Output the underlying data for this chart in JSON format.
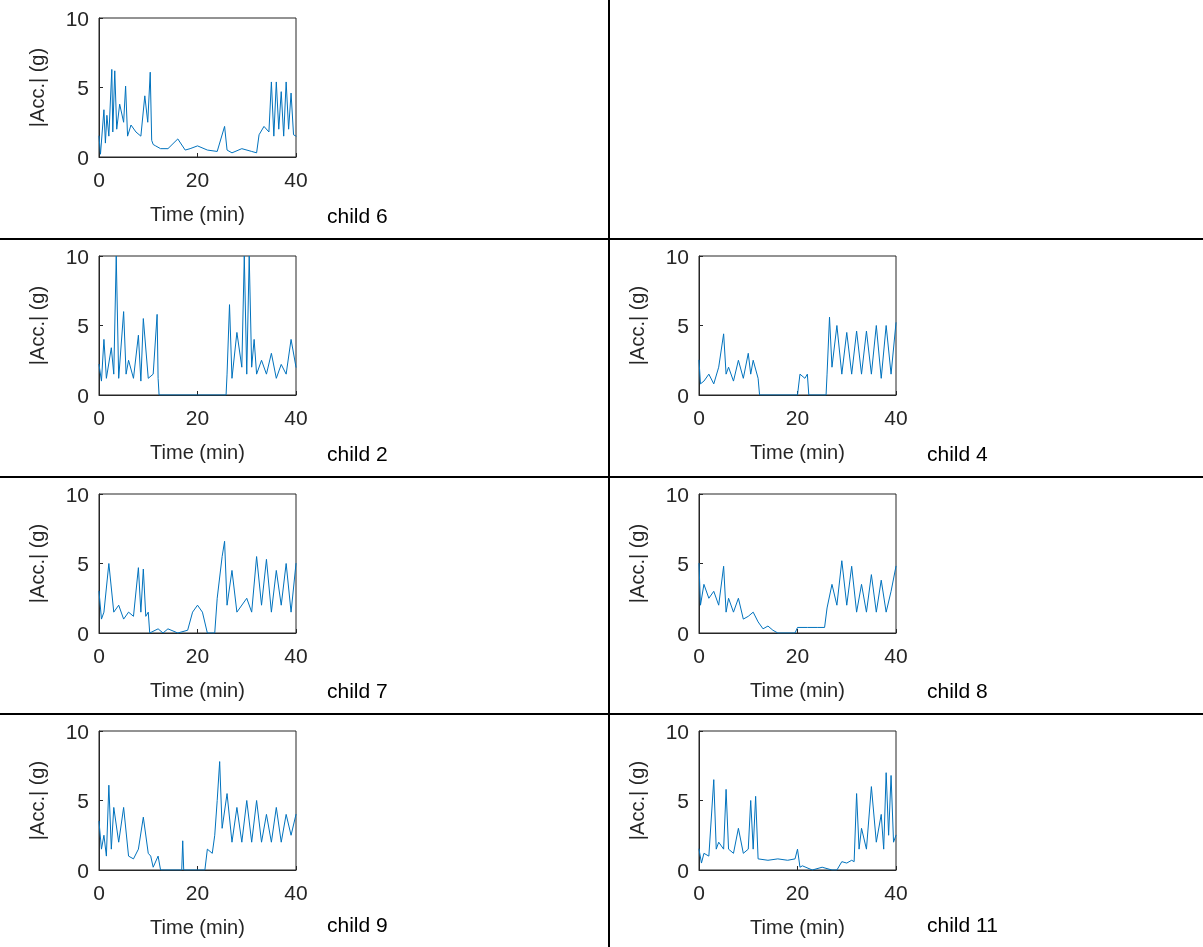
{
  "chart_data": [
    {
      "type": "line",
      "xlabel": "Time (min)",
      "ylabel": "|Acc.| (g)",
      "annotations": [
        "child 6"
      ],
      "xlim": [
        0,
        40
      ],
      "xticks": [
        0,
        20,
        40
      ],
      "ylim": [
        0,
        10
      ],
      "yticks": [
        0,
        5,
        10
      ],
      "grid": false,
      "marker": "none",
      "line_style": "solid",
      "series": [
        {
          "color": "#0072bd",
          "x": [
            0,
            0.3,
            1,
            1.3,
            1.6,
            2,
            2.6,
            2.8,
            3.2,
            3.6,
            4.2,
            5,
            5.4,
            5.8,
            6.5,
            7.5,
            8.5,
            9.3,
            9.9,
            10.4,
            10.7,
            11,
            11.5,
            12.5,
            14,
            16,
            17.5,
            18.5,
            20,
            22,
            24,
            25.5,
            26,
            27,
            29,
            31,
            32,
            32.5,
            33.5,
            34.5,
            35,
            35.5,
            36,
            36.5,
            37,
            37.5,
            38,
            38.5,
            39,
            39.5,
            40
          ],
          "values": [
            1.5,
            0.2,
            3.4,
            1,
            3,
            1.5,
            6.3,
            1.8,
            6.2,
            2,
            3.8,
            2.5,
            5.1,
            1.5,
            2.3,
            1.8,
            1.5,
            4.4,
            2.5,
            6.1,
            1.2,
            0.9,
            0.8,
            0.6,
            0.6,
            1.3,
            0.5,
            0.6,
            0.8,
            0.5,
            0.4,
            2.2,
            0.5,
            0.3,
            0.6,
            0.4,
            0.3,
            1.6,
            2.2,
            1.8,
            5.4,
            1.5,
            5.4,
            2,
            4.7,
            1.5,
            5.4,
            2,
            4.6,
            1.6,
            1.5
          ]
        }
      ]
    },
    {
      "type": "line",
      "xlabel": "Time (min)",
      "ylabel": "|Acc.| (g)",
      "annotations": [
        "child 2"
      ],
      "xlim": [
        0,
        40
      ],
      "xticks": [
        0,
        20,
        40
      ],
      "ylim": [
        0,
        10
      ],
      "yticks": [
        0,
        5,
        10
      ],
      "grid": false,
      "marker": "none",
      "line_style": "solid",
      "series": [
        {
          "color": "#0072bd",
          "x": [
            0,
            0.5,
            1,
            1.5,
            2.5,
            3,
            3.5,
            4,
            5,
            5.5,
            6,
            7,
            8,
            8.5,
            9,
            10,
            11,
            11.8,
            12,
            12.2,
            25.8,
            26,
            26.5,
            27,
            28,
            29,
            29.5,
            30,
            30.5,
            31,
            31.5,
            32,
            33,
            34,
            35,
            36,
            37,
            38,
            39,
            40
          ],
          "values": [
            2.2,
            1,
            4,
            1.2,
            3.4,
            1.5,
            10,
            1.2,
            6,
            1.5,
            2.5,
            1.2,
            4.3,
            1,
            5.5,
            1.2,
            1.5,
            5.8,
            1.2,
            0,
            0,
            1.5,
            6.5,
            1.2,
            4.5,
            2,
            10,
            1.5,
            10,
            2,
            4,
            1.5,
            2.5,
            1.5,
            3,
            1.2,
            2.2,
            1.5,
            4,
            2
          ]
        }
      ]
    },
    {
      "type": "line",
      "xlabel": "Time (min)",
      "ylabel": "|Acc.| (g)",
      "annotations": [
        "child 4"
      ],
      "xlim": [
        0,
        40
      ],
      "xticks": [
        0,
        20,
        40
      ],
      "ylim": [
        0,
        10
      ],
      "yticks": [
        0,
        5,
        10
      ],
      "grid": false,
      "marker": "none",
      "line_style": "solid",
      "series": [
        {
          "color": "#0072bd",
          "x": [
            0,
            0.3,
            1,
            2,
            3,
            4,
            5,
            5.5,
            6,
            7,
            8,
            9,
            10,
            10.5,
            11,
            12,
            12.3,
            20,
            20.5,
            21.5,
            22,
            22.3,
            25,
            25.8,
            26,
            26.5,
            27,
            28,
            29,
            30,
            31,
            32,
            33,
            34,
            35,
            36,
            37,
            38,
            39,
            40
          ],
          "values": [
            2.5,
            0.8,
            1,
            1.5,
            0.8,
            2,
            4.4,
            1.5,
            2,
            1,
            2.5,
            1.2,
            3,
            1.5,
            2.5,
            1.2,
            0,
            0,
            1.5,
            1.2,
            1.5,
            0,
            0,
            0,
            1.5,
            5.6,
            2,
            5,
            1.5,
            4.5,
            1.5,
            4.6,
            1.5,
            4.6,
            1.5,
            5,
            1.2,
            5,
            1.5,
            5.2
          ]
        }
      ]
    },
    {
      "type": "line",
      "xlabel": "Time (min)",
      "ylabel": "|Acc.| (g)",
      "annotations": [
        "child 7"
      ],
      "xlim": [
        0,
        40
      ],
      "xticks": [
        0,
        20,
        40
      ],
      "ylim": [
        0,
        10
      ],
      "yticks": [
        0,
        5,
        10
      ],
      "grid": false,
      "marker": "none",
      "line_style": "solid",
      "series": [
        {
          "color": "#0072bd",
          "x": [
            0,
            0.5,
            1,
            2,
            3,
            4,
            5,
            6,
            7,
            8,
            8.5,
            9,
            9.5,
            10,
            10.3,
            12,
            13,
            14,
            16,
            18,
            19,
            20,
            21,
            22,
            22.5,
            23.5,
            24,
            25,
            25.5,
            26,
            27,
            28,
            30,
            31,
            32,
            33,
            34,
            35,
            36,
            37,
            38,
            39,
            40
          ],
          "values": [
            3,
            1,
            1.5,
            5,
            1.5,
            2,
            1,
            1.5,
            1.2,
            4.7,
            1.5,
            4.6,
            1.2,
            1.5,
            0,
            0.3,
            0,
            0.3,
            0,
            0.2,
            1.5,
            2,
            1.5,
            0,
            0,
            0,
            2.5,
            5.5,
            6.6,
            2,
            4.5,
            1.5,
            2.5,
            1.5,
            5.5,
            2,
            5.3,
            1.5,
            4.5,
            2,
            5,
            1.5,
            5
          ]
        }
      ]
    },
    {
      "type": "line",
      "xlabel": "Time (min)",
      "ylabel": "|Acc.| (g)",
      "annotations": [
        "child 8"
      ],
      "xlim": [
        0,
        40
      ],
      "xticks": [
        0,
        20,
        40
      ],
      "ylim": [
        0,
        10
      ],
      "yticks": [
        0,
        5,
        10
      ],
      "grid": false,
      "marker": "none",
      "line_style": "solid",
      "series": [
        {
          "color": "#0072bd",
          "x": [
            0,
            0.3,
            1,
            2,
            3,
            4,
            5,
            5.5,
            6,
            7,
            8,
            9,
            10,
            11,
            12,
            13,
            14,
            15,
            16,
            19.5,
            20,
            22,
            24,
            25.5,
            26,
            27,
            28,
            29,
            30,
            31,
            32,
            33,
            34,
            35,
            36,
            37,
            38,
            39,
            40
          ],
          "values": [
            5,
            2,
            3.5,
            2.5,
            3,
            2,
            4.8,
            1.5,
            2.5,
            1.5,
            2.5,
            1,
            1.2,
            1.5,
            0.8,
            0.3,
            0.5,
            0.2,
            0,
            0,
            0.4,
            0.4,
            0.4,
            0.4,
            1.8,
            3.5,
            2,
            5.2,
            2,
            4.8,
            1.5,
            3.5,
            1.5,
            4.2,
            1.5,
            3.8,
            1.5,
            3,
            4.8
          ]
        }
      ]
    },
    {
      "type": "line",
      "xlabel": "Time (min)",
      "ylabel": "|Acc.| (g)",
      "annotations": [
        "child 9"
      ],
      "xlim": [
        0,
        40
      ],
      "xticks": [
        0,
        20,
        40
      ],
      "ylim": [
        0,
        10
      ],
      "yticks": [
        0,
        5,
        10
      ],
      "grid": false,
      "marker": "none",
      "line_style": "solid",
      "series": [
        {
          "color": "#0072bd",
          "x": [
            0,
            0.5,
            1,
            1.5,
            2,
            2.5,
            3,
            4,
            5,
            6,
            7,
            8,
            9,
            10,
            10.5,
            11,
            12,
            12.5,
            13,
            16.8,
            17,
            17.2,
            21.5,
            22,
            23,
            23.5,
            24,
            24.5,
            25,
            26,
            27,
            28,
            29,
            30,
            31,
            32,
            33,
            34,
            35,
            36,
            37,
            38,
            39,
            40
          ],
          "values": [
            3.5,
            1.5,
            2.5,
            1,
            6.1,
            1.5,
            4.5,
            2,
            4.5,
            1,
            0.8,
            1.5,
            3.8,
            1.2,
            1,
            0.2,
            1,
            0,
            0,
            0,
            2.1,
            0,
            0,
            1.5,
            1.2,
            2.5,
            5,
            7.8,
            3,
            5.5,
            2,
            4.5,
            2,
            5,
            2,
            5,
            2,
            4,
            2,
            4.5,
            2,
            4,
            2.5,
            4
          ]
        }
      ]
    },
    {
      "type": "line",
      "xlabel": "Time (min)",
      "ylabel": "|Acc.| (g)",
      "annotations": [
        "child 11"
      ],
      "xlim": [
        0,
        40
      ],
      "xticks": [
        0,
        20,
        40
      ],
      "ylim": [
        0,
        10
      ],
      "yticks": [
        0,
        5,
        10
      ],
      "grid": false,
      "marker": "none",
      "line_style": "solid",
      "series": [
        {
          "color": "#0072bd",
          "x": [
            0,
            0.5,
            1,
            2,
            3,
            3.5,
            4,
            5,
            5.5,
            6,
            7,
            8,
            9,
            10,
            10.5,
            11,
            11.5,
            12,
            14,
            16,
            18,
            19.5,
            20,
            20.5,
            21,
            23,
            25,
            27,
            28,
            29,
            30,
            31,
            31.5,
            32,
            32.5,
            33,
            34,
            35,
            36,
            37,
            37.5,
            38,
            38.5,
            39,
            39.5,
            40
          ],
          "values": [
            1.5,
            0.5,
            1.2,
            1,
            6.5,
            1.5,
            2,
            1.5,
            5.8,
            1.5,
            1.2,
            3,
            1.2,
            1.5,
            5,
            1.5,
            5.3,
            0.8,
            0.7,
            0.8,
            0.7,
            0.8,
            1.5,
            0.2,
            0.3,
            0,
            0.2,
            0,
            0,
            0.6,
            0.5,
            0.7,
            0.6,
            5.5,
            1.5,
            3,
            1.5,
            6,
            2,
            4,
            1.5,
            7,
            2.5,
            6.8,
            2,
            2.5
          ]
        }
      ]
    }
  ]
}
